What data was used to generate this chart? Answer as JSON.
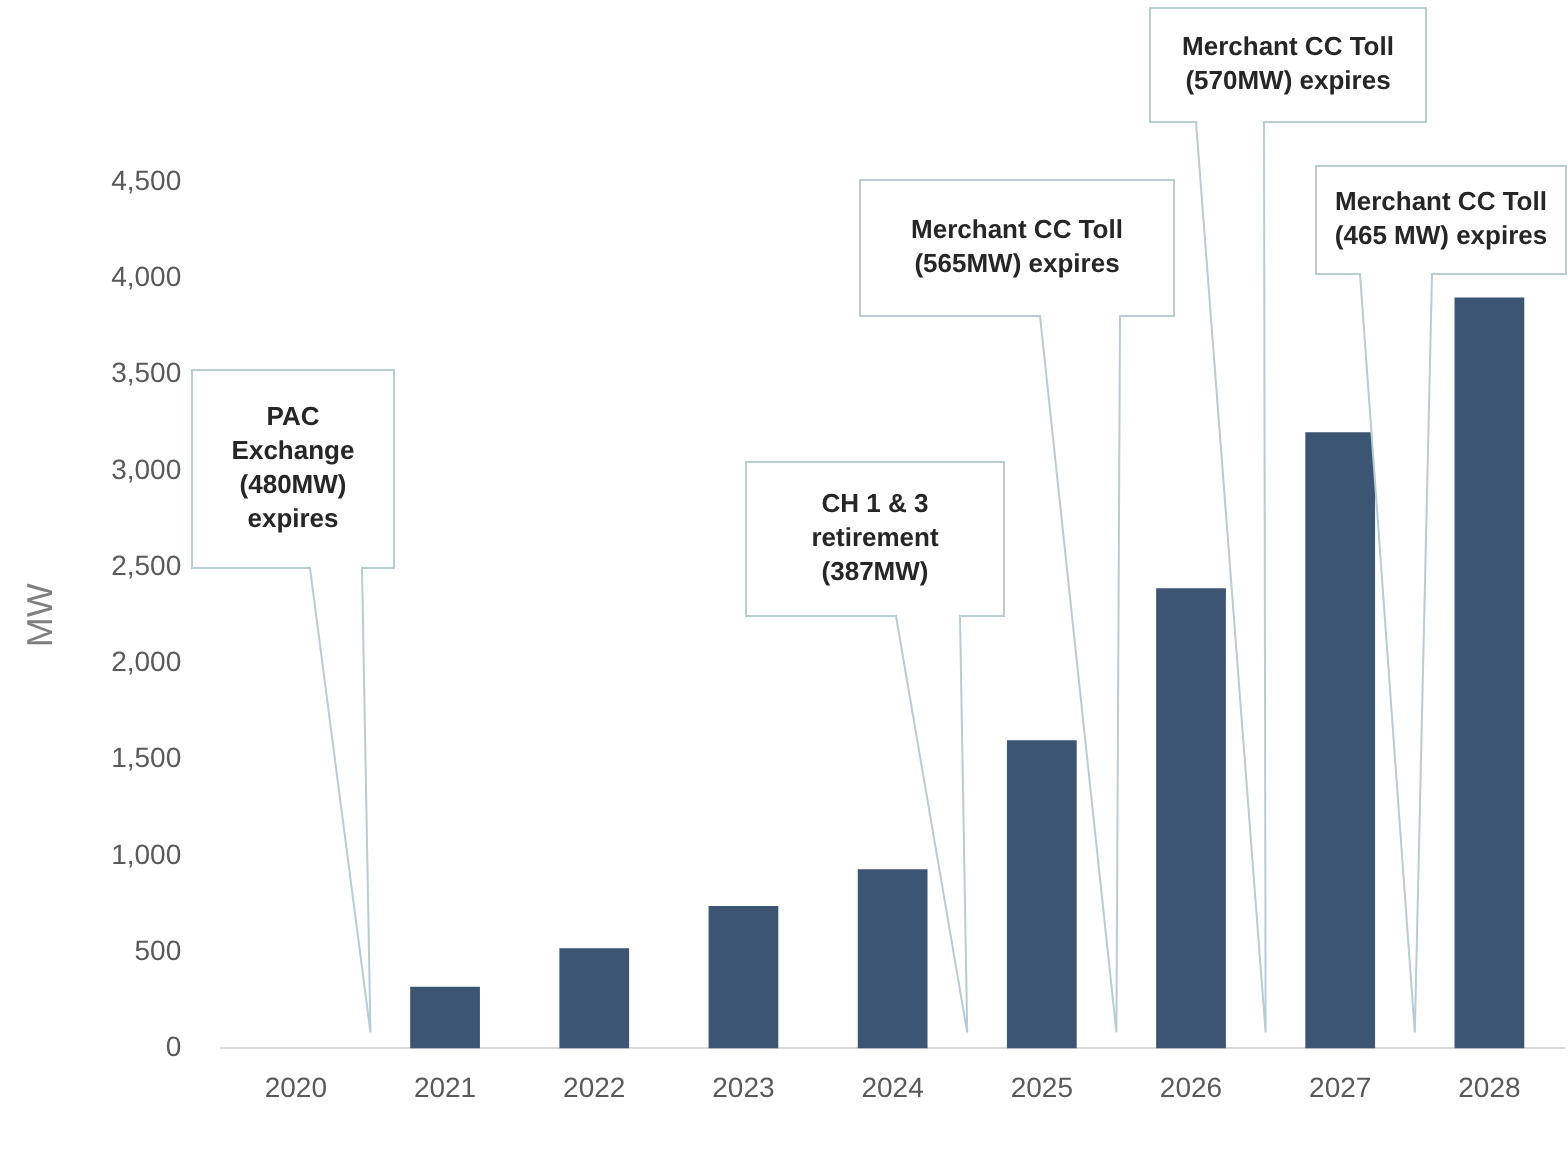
{
  "chart_data": {
    "type": "bar",
    "ylabel": "MW",
    "categories": [
      "2020",
      "2021",
      "2022",
      "2023",
      "2024",
      "2025",
      "2026",
      "2027",
      "2028"
    ],
    "values": [
      0,
      320,
      520,
      740,
      930,
      1600,
      2390,
      3200,
      3900
    ],
    "color": "#3b5573",
    "ylim": [
      0,
      4500
    ],
    "yticks": [
      {
        "value": 0,
        "label": "0"
      },
      {
        "value": 500,
        "label": "500"
      },
      {
        "value": 1000,
        "label": "1,000"
      },
      {
        "value": 1500,
        "label": "1,500"
      },
      {
        "value": 2000,
        "label": "2,000"
      },
      {
        "value": 2500,
        "label": "2,500"
      },
      {
        "value": 3000,
        "label": "3,000"
      },
      {
        "value": 3500,
        "label": "3,500"
      },
      {
        "value": 4000,
        "label": "4,000"
      },
      {
        "value": 4500,
        "label": "4,500"
      }
    ],
    "grid": false,
    "legend": false,
    "annotations": [
      "PAC Exchange (480MW) expires",
      "CH 1 & 3 retirement (387MW)",
      "Merchant CC Toll (565MW) expires",
      "Merchant CC Toll (570MW) expires",
      "Merchant CC Toll (465 MW) expires"
    ]
  }
}
